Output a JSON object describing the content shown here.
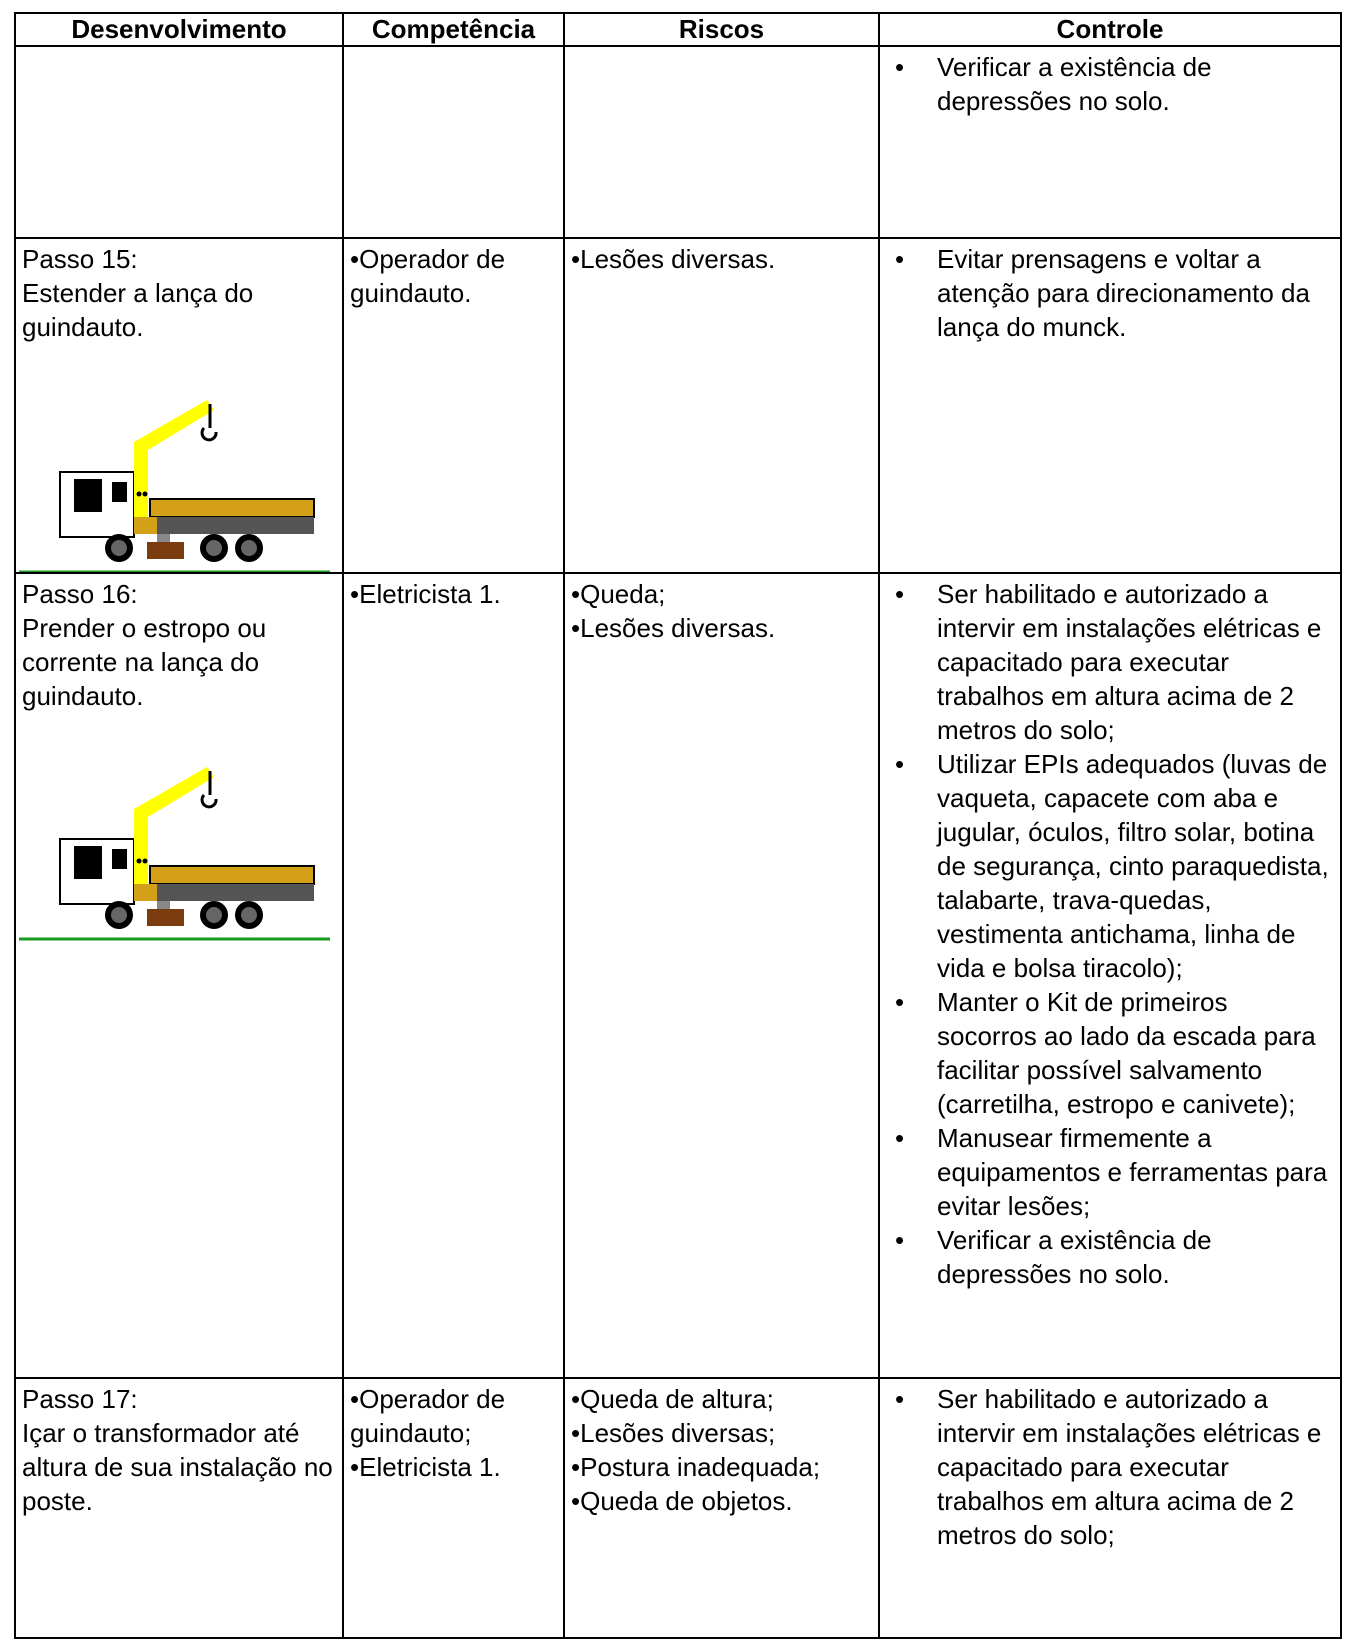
{
  "table": {
    "header": [
      "Desenvolvimento",
      "Competência",
      "Riscos",
      "Controle"
    ],
    "rows": [
      {
        "controle": [
          "Verificar a existência de depressões no solo."
        ]
      },
      {
        "step": "Passo 15:",
        "description": "Estender a lança do guindauto.",
        "competencia": [
          "Operador de guindauto."
        ],
        "riscos": [
          "Lesões diversas."
        ],
        "controle": [
          "Evitar prensagens e voltar a atenção para direcionamento da lança do munck."
        ]
      },
      {
        "step": "Passo 16:",
        "description": "Prender o estropo ou corrente na lança do guindauto.",
        "competencia": [
          "Eletricista 1."
        ],
        "riscos": [
          "Queda;",
          "Lesões diversas."
        ],
        "controle": [
          "Ser habilitado e autorizado a intervir em instalações elétricas e capacitado para executar trabalhos em altura acima de 2 metros do solo;",
          "Utilizar EPIs adequados (luvas de vaqueta, capacete com aba e jugular, óculos, filtro solar, botina de segurança, cinto paraquedista, talabarte, trava-quedas, vestimenta antichama, linha de vida e bolsa tiracolo);",
          "Manter o Kit de primeiros socorros ao lado da escada para facilitar possível salvamento (carretilha, estropo e canivete);",
          "Manusear firmemente a equipamentos e ferramentas para evitar lesões;",
          "Verificar a existência de depressões no solo."
        ]
      },
      {
        "step": "Passo 17:",
        "description": "Içar o transformador até altura de sua instalação no poste.",
        "competencia": [
          "Operador de guindauto;",
          "Eletricista 1."
        ],
        "riscos": [
          "Queda de altura;",
          "Lesões diversas;",
          "Postura inadequada;",
          "Queda de objetos."
        ],
        "controle": [
          "Ser habilitado e autorizado a intervir em instalações elétricas e capacitado para executar trabalhos em altura acima de 2 metros do solo;"
        ]
      }
    ]
  }
}
